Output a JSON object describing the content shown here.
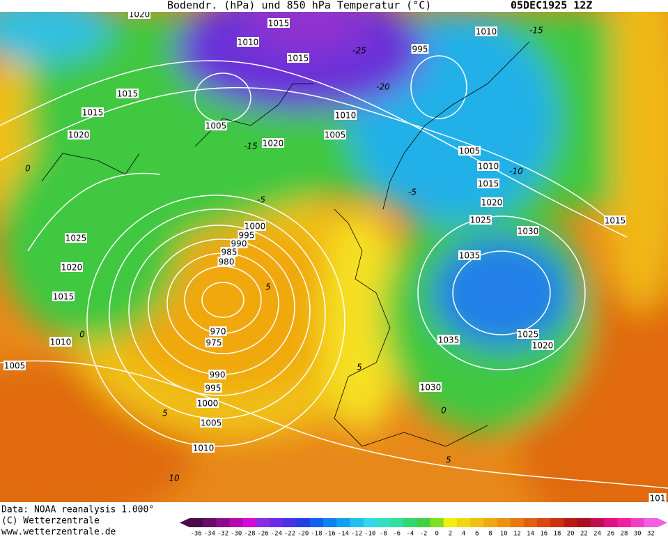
{
  "header": {
    "title": "Bodendr. (hPa) und 850 hPa Temperatur (°C)",
    "date": "05DEC1925 12Z"
  },
  "footer": {
    "lines": [
      "Data: NOAA reanalysis 1.000°",
      "(C) Wetterzentrale",
      "www.wetterzentrale.de"
    ]
  },
  "colorbar": {
    "ticks": [
      -36,
      -34,
      -32,
      -30,
      -28,
      -26,
      -24,
      -22,
      -20,
      -18,
      -16,
      -14,
      -12,
      -10,
      -8,
      -6,
      -4,
      -2,
      0,
      2,
      4,
      6,
      8,
      10,
      12,
      14,
      16,
      18,
      20,
      22,
      24,
      26,
      28,
      30,
      32
    ],
    "colors": [
      "#4b0a4b",
      "#6a0a6a",
      "#8c0a8c",
      "#b00ab0",
      "#d40ad4",
      "#8a2be2",
      "#6a2ae6",
      "#4a30e6",
      "#2040e6",
      "#1060f0",
      "#1080f0",
      "#10a0f0",
      "#20c0f0",
      "#30d8e8",
      "#30e0c0",
      "#30e0a0",
      "#30d870",
      "#40d040",
      "#80e020",
      "#f0f010",
      "#f0d810",
      "#f0c010",
      "#f0a810",
      "#f09010",
      "#e87810",
      "#e06010",
      "#d84810",
      "#c83010",
      "#b81818",
      "#a81020",
      "#c01050",
      "#e01080",
      "#f020a0",
      "#f040c0",
      "#f060e0"
    ]
  },
  "isobar_labels": [
    "1020",
    "1015",
    "1010",
    "1015",
    "1015",
    "1015",
    "1020",
    "1005",
    "1010",
    "1005",
    "1020",
    "1010",
    "995",
    "1005",
    "1010",
    "1015",
    "1020",
    "1025",
    "1030",
    "1035",
    "1000",
    "995",
    "990",
    "985",
    "980",
    "970",
    "975",
    "1025",
    "1020",
    "1015",
    "1010",
    "1005",
    "1035",
    "1025",
    "1020",
    "1030",
    "990",
    "995",
    "1000",
    "1005",
    "1010",
    "1015",
    "101"
  ],
  "temperature_labels": [
    "-15",
    "-25",
    "-20",
    "-15",
    "-10",
    "-5",
    "-5",
    "0",
    "5",
    "0",
    "5",
    "5",
    "0",
    "5",
    "10"
  ]
}
